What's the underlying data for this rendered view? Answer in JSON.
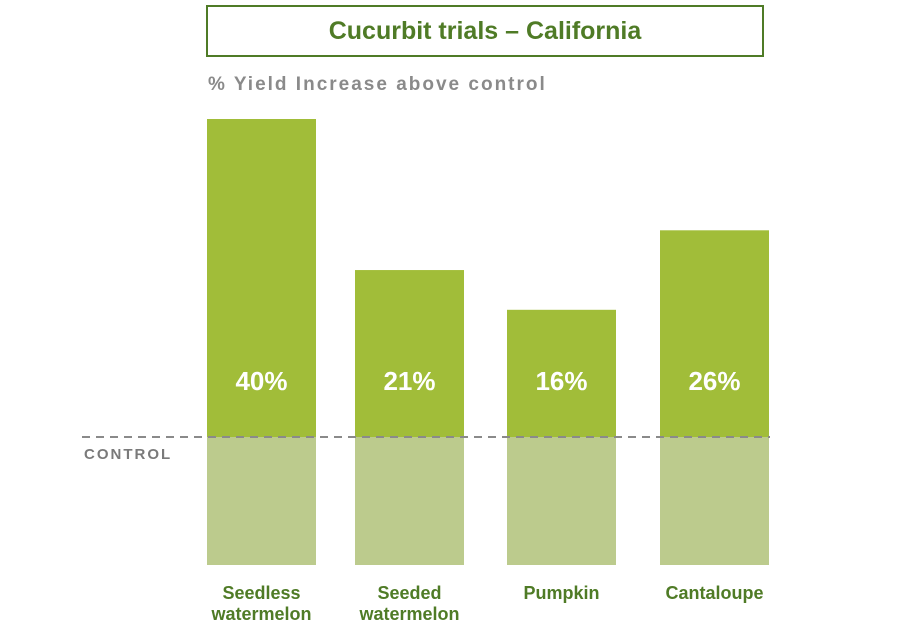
{
  "chart_data": {
    "type": "bar",
    "title": "Cucurbit trials – California",
    "ylabel": "% Yield Increase above control",
    "baseline_label": "CONTROL",
    "categories": [
      [
        "Seedless",
        "watermelon"
      ],
      [
        "Seeded",
        "watermelon"
      ],
      [
        "Pumpkin"
      ],
      [
        "Cantaloupe"
      ]
    ],
    "values": [
      40,
      21,
      16,
      26
    ],
    "value_labels": [
      "40%",
      "21%",
      "16%",
      "26%"
    ],
    "ylim": [
      0,
      40
    ],
    "colors": {
      "bar": "#a1bd39",
      "control": "#bccb8d",
      "title": "#4f7b26",
      "dash": "#8a8a8a"
    }
  }
}
